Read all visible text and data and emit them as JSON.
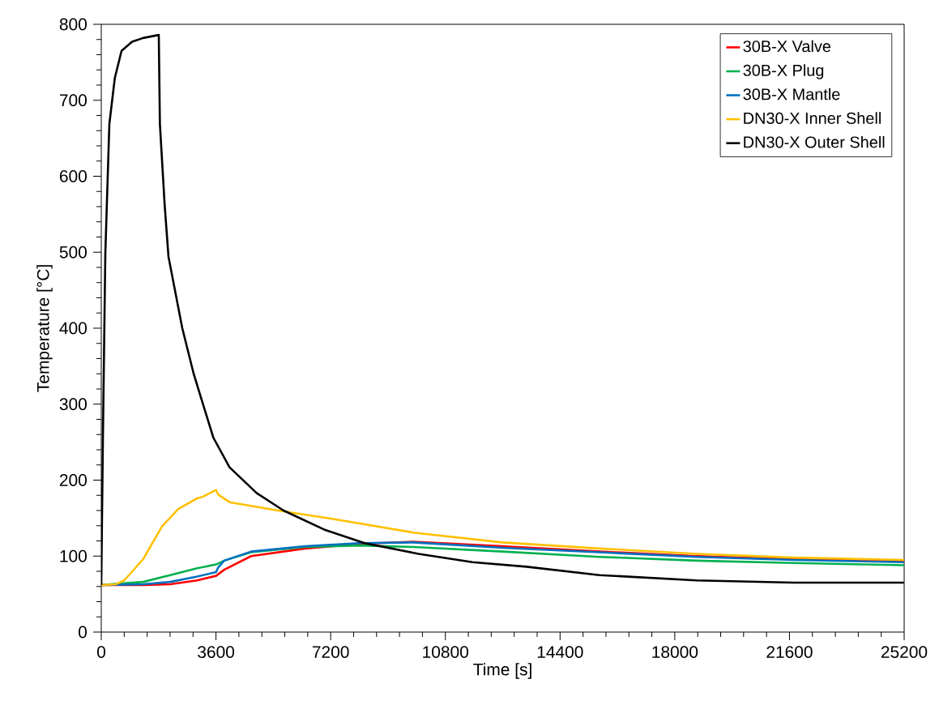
{
  "chart_data": {
    "type": "line",
    "xlabel": "Time [s]",
    "ylabel": "Temperature [°C]",
    "xlim": [
      0,
      25200
    ],
    "ylim": [
      0,
      800
    ],
    "xticks": [
      0,
      3600,
      7200,
      10800,
      14400,
      18000,
      21600,
      25200
    ],
    "yticks": [
      0,
      100,
      200,
      300,
      400,
      500,
      600,
      700,
      800
    ],
    "legend": "top right",
    "marker": "none",
    "line_style": "solid",
    "grid": false,
    "series": [
      {
        "name": "30B-X Valve",
        "color": "#ff0000",
        "x": [
          0,
          1314,
          2162,
          3008,
          3603,
          3857,
          4704,
          6399,
          8094,
          9790,
          12587,
          15639,
          18690,
          21742,
          25200
        ],
        "values": [
          62,
          62,
          63,
          68,
          74,
          82,
          100,
          110,
          116,
          119,
          113,
          106,
          100,
          96,
          93
        ]
      },
      {
        "name": "30B-X Plug",
        "color": "#00b050",
        "x": [
          0,
          1314,
          2162,
          3008,
          3603,
          3857,
          4704,
          6399,
          8094,
          9790,
          12587,
          15639,
          18690,
          21742,
          25200
        ],
        "values": [
          62,
          66,
          75,
          84,
          89,
          94,
          105,
          112,
          114,
          112,
          106,
          99,
          94,
          91,
          88
        ]
      },
      {
        "name": "30B-X Mantle",
        "color": "#0070c0",
        "x": [
          0,
          1314,
          2162,
          3008,
          3603,
          3670,
          3857,
          4704,
          6399,
          8094,
          9790,
          12587,
          15639,
          18690,
          21742,
          25200
        ],
        "values": [
          62,
          63,
          66,
          73,
          79,
          85,
          94,
          106,
          113,
          117,
          118,
          111,
          105,
          99,
          95,
          92
        ]
      },
      {
        "name": "DN30-X Inner Shell",
        "color": "#ffc000",
        "x": [
          0,
          465,
          720,
          1314,
          1907,
          2416,
          3008,
          3178,
          3603,
          3670,
          4025,
          5551,
          7247,
          9790,
          12587,
          15639,
          18690,
          21742,
          25200
        ],
        "values": [
          62,
          63,
          68,
          96,
          139,
          162,
          176,
          178,
          187,
          181,
          171,
          160,
          149,
          131,
          118,
          110,
          103,
          98,
          95
        ]
      },
      {
        "name": "DN30-X Outer Shell",
        "color": "#000000",
        "x": [
          0,
          50,
          127,
          254,
          424,
          636,
          966,
          1314,
          1805,
          1840,
          1990,
          2110,
          2543,
          2900,
          3178,
          3517,
          4025,
          4874,
          5721,
          6992,
          8264,
          9959,
          11655,
          13351,
          15639,
          18690,
          21742,
          25200
        ],
        "values": [
          62,
          250,
          498,
          669,
          729,
          765,
          777,
          782,
          786,
          669,
          562,
          494,
          400,
          340,
          302,
          256,
          217,
          183,
          160,
          135,
          117,
          103,
          92,
          86,
          75,
          68,
          65,
          65
        ]
      }
    ]
  }
}
